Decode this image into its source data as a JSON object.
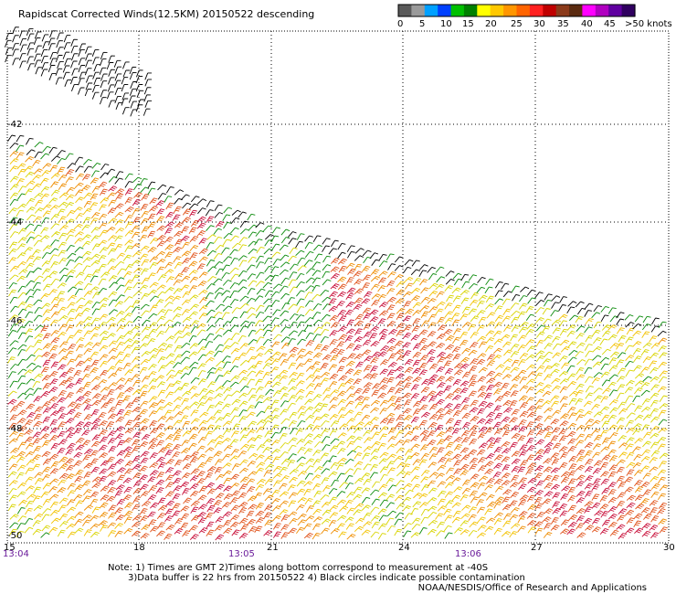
{
  "title": "Rapidscat Corrected Winds(12.5KM) 20150522 descending",
  "colorbar": {
    "swatches": [
      "#5a5a5a",
      "#9a9a9a",
      "#00a0ff",
      "#0040ff",
      "#00c000",
      "#008000",
      "#ffff00",
      "#ffc800",
      "#ff9600",
      "#ff6400",
      "#ff2020",
      "#c00000",
      "#8b3a1a",
      "#5a2a10",
      "#ff00ff",
      "#b000c0",
      "#6000a0",
      "#300060"
    ],
    "labels": [
      "0",
      "5",
      "10",
      "15",
      "20",
      "25",
      "30",
      "35",
      "40",
      "45",
      ">50 knots"
    ]
  },
  "axes": {
    "lat_labels": [
      "-42",
      "-44",
      "-46",
      "-48",
      "-50"
    ],
    "lon_labels": [
      "15",
      "18",
      "21",
      "24",
      "27",
      "30"
    ],
    "time_labels": [
      "13:04",
      "13:05",
      "13:06"
    ]
  },
  "notes": {
    "line1": "Note: 1) Times are GMT 2)Times along bottom correspond to measurement at -40S",
    "line2": "3)Data buffer is 22 hrs from 20150522 4) Black circles indicate possible contamination",
    "credit": "NOAA/NESDIS/Office of Research and Applications"
  }
}
